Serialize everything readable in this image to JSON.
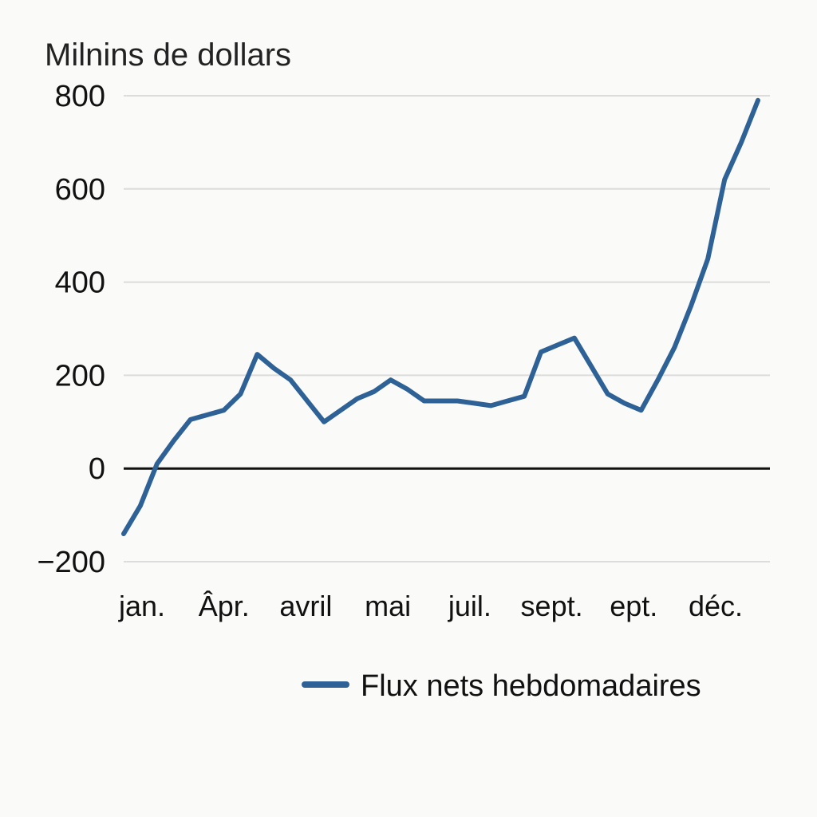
{
  "chart_data": {
    "type": "line",
    "title": "",
    "ylabel": "Milnins de dollars",
    "xlabel": "",
    "ylim": [
      -200,
      800
    ],
    "yticks": [
      800,
      600,
      400,
      200,
      0,
      -200
    ],
    "ytick_labels": [
      "800",
      "600",
      "400",
      "200",
      "0",
      "−200"
    ],
    "x_tick_labels": [
      "jan.",
      "Âpr.",
      "avril",
      "mai",
      "juil.",
      "sept.",
      "ept.",
      "déc."
    ],
    "grid": true,
    "legend_position": "bottom-right",
    "series": [
      {
        "name": "Flux nets hebdomadaires",
        "color": "#2e6196",
        "values": [
          -140,
          -80,
          10,
          60,
          105,
          115,
          125,
          160,
          245,
          215,
          190,
          145,
          100,
          125,
          150,
          165,
          190,
          170,
          145,
          145,
          145,
          140,
          135,
          145,
          155,
          250,
          265,
          280,
          220,
          160,
          140,
          125,
          190,
          260,
          350,
          450,
          620,
          700,
          790
        ]
      }
    ]
  }
}
